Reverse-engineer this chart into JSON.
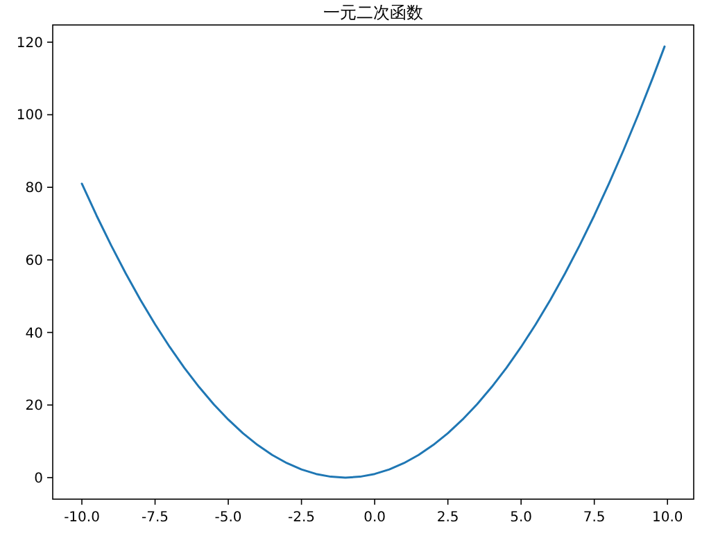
{
  "chart_data": {
    "type": "line",
    "title": "一元二次函数",
    "x": [
      -10,
      -9.5,
      -9,
      -8.5,
      -8,
      -7.5,
      -7,
      -6.5,
      -6,
      -5.5,
      -5,
      -4.5,
      -4,
      -3.5,
      -3,
      -2.5,
      -2,
      -1.5,
      -1,
      -0.5,
      0,
      0.5,
      1,
      1.5,
      2,
      2.5,
      3,
      3.5,
      4,
      4.5,
      5,
      5.5,
      6,
      6.5,
      7,
      7.5,
      8,
      8.5,
      9,
      9.5,
      9.9
    ],
    "values": [
      81,
      72.25,
      64,
      56.25,
      49,
      42.25,
      36,
      30.25,
      25,
      20.25,
      16,
      12.25,
      9,
      6.25,
      4,
      2.25,
      1,
      0.25,
      0,
      0.25,
      1,
      2.25,
      4,
      6.25,
      9,
      12.25,
      16,
      20.25,
      25,
      30.25,
      36,
      42.25,
      49,
      56.25,
      64,
      72.25,
      81,
      90.25,
      100,
      110.25,
      118.8
    ],
    "color": "#1f77b4",
    "xlim": [
      -10.995,
      10.895
    ],
    "ylim": [
      -5.94,
      124.74
    ],
    "xticks": [
      {
        "value": -10,
        "label": "-10.0"
      },
      {
        "value": -7.5,
        "label": "-7.5"
      },
      {
        "value": -5,
        "label": "-5.0"
      },
      {
        "value": -2.5,
        "label": "-2.5"
      },
      {
        "value": 0,
        "label": "0.0"
      },
      {
        "value": 2.5,
        "label": "2.5"
      },
      {
        "value": 5,
        "label": "5.0"
      },
      {
        "value": 7.5,
        "label": "7.5"
      },
      {
        "value": 10,
        "label": "10.0"
      }
    ],
    "yticks": [
      0,
      20,
      40,
      60,
      80,
      100,
      120
    ]
  }
}
